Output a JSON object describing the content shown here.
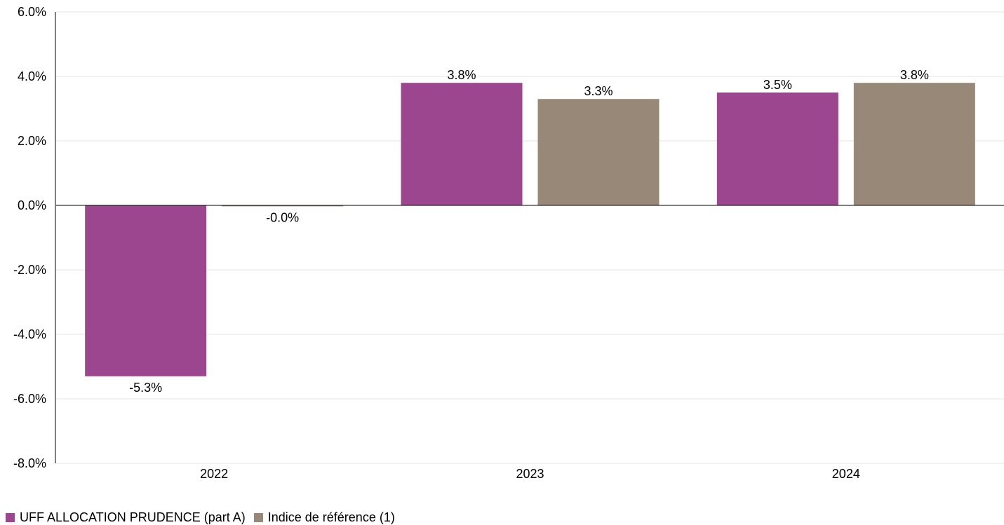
{
  "chart_data": {
    "type": "bar",
    "categories": [
      "2022",
      "2023",
      "2024"
    ],
    "series": [
      {
        "name": "UFF ALLOCATION PRUDENCE (part A)",
        "values": [
          -5.3,
          3.8,
          3.5
        ],
        "labels": [
          "-5.3%",
          "3.8%",
          "3.5%"
        ],
        "color": "#9c468f"
      },
      {
        "name": "Indice de référence (1)",
        "values": [
          -0.03,
          3.3,
          3.8
        ],
        "labels": [
          "-0.0%",
          "3.3%",
          "3.8%"
        ],
        "color": "#978877"
      }
    ],
    "ylim": [
      -8,
      6
    ],
    "yticks": [
      {
        "value": 6,
        "label": "6.0%"
      },
      {
        "value": 4,
        "label": "4.0%"
      },
      {
        "value": 2,
        "label": "2.0%"
      },
      {
        "value": 0,
        "label": "0.0%"
      },
      {
        "value": -2,
        "label": "-2.0%"
      },
      {
        "value": -4,
        "label": "-4.0%"
      },
      {
        "value": -6,
        "label": "-6.0%"
      },
      {
        "value": -8,
        "label": "-8.0%"
      }
    ],
    "grid": true,
    "legend_position": "bottom-left"
  }
}
